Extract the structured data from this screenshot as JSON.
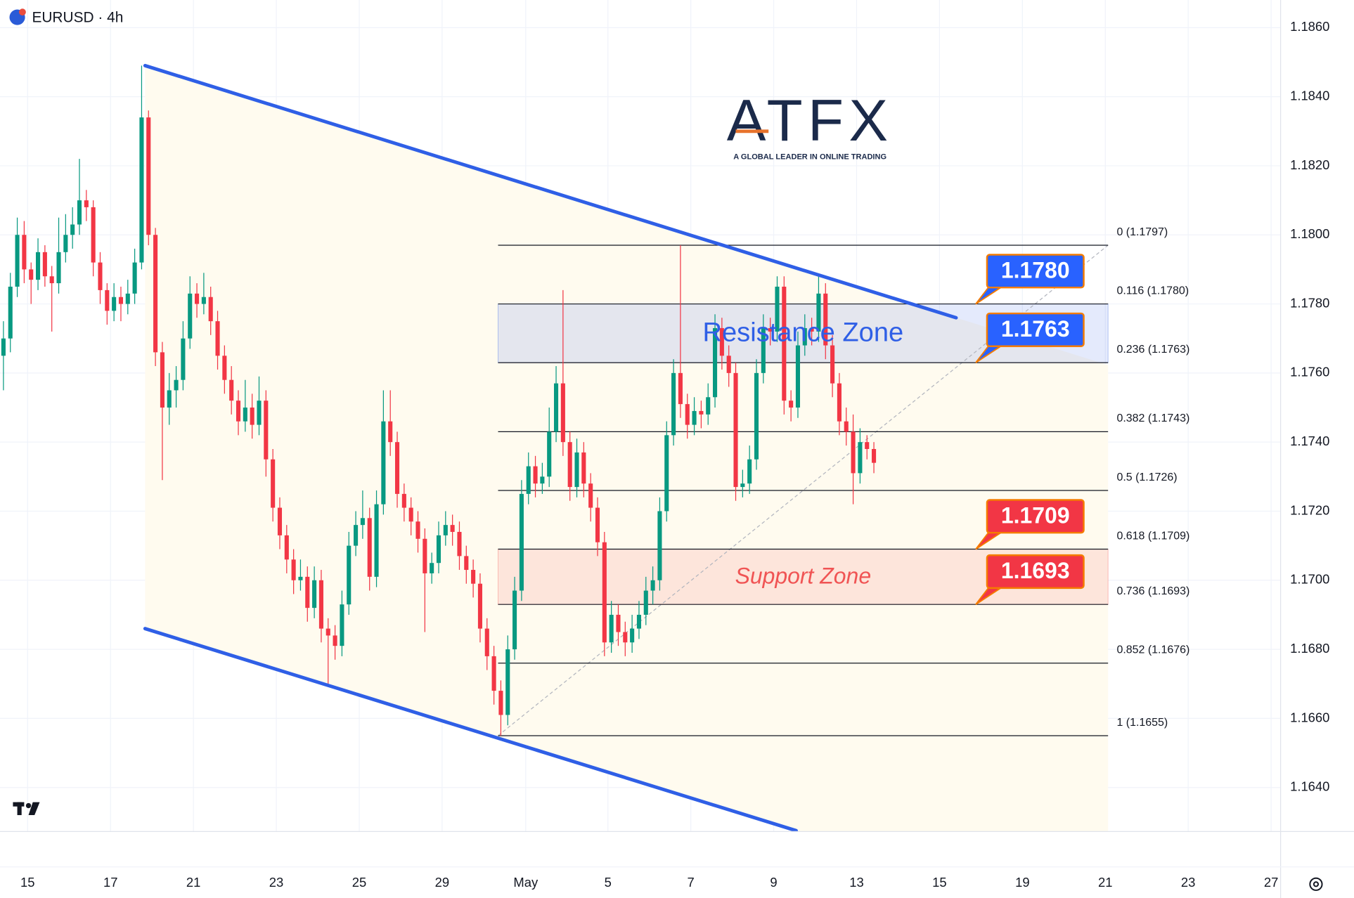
{
  "chart_data": {
    "type": "candlestick",
    "title": "EURUSD · 4h",
    "logo": {
      "name": "ATFX",
      "tagline": "A GLOBAL LEADER IN ONLINE TRADING"
    },
    "up_color": "#089981",
    "down_color": "#f23645",
    "grid": true,
    "xlim": [
      -0.5,
      184.875
    ],
    "ylim": [
      1.162725,
      1.1868
    ],
    "xticks": [
      {
        "value": 3.5,
        "label": "15"
      },
      {
        "value": 15.5,
        "label": "17"
      },
      {
        "value": 27.5,
        "label": "21"
      },
      {
        "value": 39.5,
        "label": "23"
      },
      {
        "value": 51.5,
        "label": "25"
      },
      {
        "value": 63.5,
        "label": "29"
      },
      {
        "value": 75.6,
        "label": "May"
      },
      {
        "value": 87.5,
        "label": "5"
      },
      {
        "value": 99.5,
        "label": "7"
      },
      {
        "value": 111.5,
        "label": "9"
      },
      {
        "value": 123.5,
        "label": "13"
      },
      {
        "value": 135.5,
        "label": "15"
      },
      {
        "value": 147.5,
        "label": "19"
      },
      {
        "value": 159.5,
        "label": "21"
      },
      {
        "value": 171.5,
        "label": "23"
      },
      {
        "value": 183.5,
        "label": "27"
      }
    ],
    "yticks": [
      {
        "value": 1.186,
        "label": "1.1860"
      },
      {
        "value": 1.184,
        "label": "1.1840"
      },
      {
        "value": 1.182,
        "label": "1.1820"
      },
      {
        "value": 1.18,
        "label": "1.1800"
      },
      {
        "value": 1.178,
        "label": "1.1780"
      },
      {
        "value": 1.176,
        "label": "1.1760"
      },
      {
        "value": 1.174,
        "label": "1.1740"
      },
      {
        "value": 1.172,
        "label": "1.1720"
      },
      {
        "value": 1.17,
        "label": "1.1700"
      },
      {
        "value": 1.168,
        "label": "1.1680"
      },
      {
        "value": 1.166,
        "label": "1.1660"
      },
      {
        "value": 1.164,
        "label": "1.1640"
      }
    ],
    "candles": [
      [
        1.1765,
        1.1775,
        1.1755,
        1.177
      ],
      [
        1.177,
        1.1789,
        1.1766,
        1.1785
      ],
      [
        1.1785,
        1.1805,
        1.1782,
        1.18
      ],
      [
        1.18,
        1.1804,
        1.1786,
        1.179
      ],
      [
        1.179,
        1.1792,
        1.178,
        1.1787
      ],
      [
        1.1787,
        1.1799,
        1.1784,
        1.1795
      ],
      [
        1.1795,
        1.1797,
        1.1785,
        1.1788
      ],
      [
        1.1788,
        1.1791,
        1.1772,
        1.1786
      ],
      [
        1.1786,
        1.1805,
        1.1783,
        1.1795
      ],
      [
        1.1795,
        1.1806,
        1.1792,
        1.18
      ],
      [
        1.18,
        1.1808,
        1.1796,
        1.1803
      ],
      [
        1.1803,
        1.1822,
        1.18,
        1.181
      ],
      [
        1.181,
        1.1813,
        1.1804,
        1.1808
      ],
      [
        1.1808,
        1.181,
        1.1788,
        1.1792
      ],
      [
        1.1792,
        1.1795,
        1.178,
        1.1784
      ],
      [
        1.1784,
        1.1786,
        1.1774,
        1.1778
      ],
      [
        1.1778,
        1.1786,
        1.1775,
        1.1782
      ],
      [
        1.1782,
        1.1785,
        1.1775,
        1.178
      ],
      [
        1.178,
        1.1787,
        1.1777,
        1.1783
      ],
      [
        1.1783,
        1.1796,
        1.178,
        1.1792
      ],
      [
        1.1792,
        1.1849,
        1.179,
        1.1834
      ],
      [
        1.1834,
        1.1836,
        1.1797,
        1.18
      ],
      [
        1.18,
        1.1802,
        1.1762,
        1.1766
      ],
      [
        1.1766,
        1.1769,
        1.1729,
        1.175
      ],
      [
        1.175,
        1.176,
        1.1745,
        1.1755
      ],
      [
        1.1755,
        1.1762,
        1.175,
        1.1758
      ],
      [
        1.1758,
        1.1775,
        1.1755,
        1.177
      ],
      [
        1.177,
        1.1788,
        1.1767,
        1.1783
      ],
      [
        1.1783,
        1.1786,
        1.1776,
        1.178
      ],
      [
        1.178,
        1.1789,
        1.1777,
        1.1782
      ],
      [
        1.1782,
        1.1785,
        1.1771,
        1.1775
      ],
      [
        1.1775,
        1.1778,
        1.1761,
        1.1765
      ],
      [
        1.1765,
        1.1768,
        1.1754,
        1.1758
      ],
      [
        1.1758,
        1.1762,
        1.1748,
        1.1752
      ],
      [
        1.1752,
        1.1755,
        1.1742,
        1.1746
      ],
      [
        1.1746,
        1.1758,
        1.1743,
        1.175
      ],
      [
        1.175,
        1.1754,
        1.1741,
        1.1745
      ],
      [
        1.1745,
        1.1759,
        1.1742,
        1.1752
      ],
      [
        1.1752,
        1.1755,
        1.173,
        1.1735
      ],
      [
        1.1735,
        1.1738,
        1.1717,
        1.1721
      ],
      [
        1.1721,
        1.1724,
        1.1709,
        1.1713
      ],
      [
        1.1713,
        1.1716,
        1.1702,
        1.1706
      ],
      [
        1.1706,
        1.1709,
        1.1696,
        1.17
      ],
      [
        1.17,
        1.1706,
        1.1697,
        1.1701
      ],
      [
        1.1701,
        1.1704,
        1.1688,
        1.1692
      ],
      [
        1.1692,
        1.1704,
        1.1689,
        1.17
      ],
      [
        1.17,
        1.1703,
        1.1682,
        1.1686
      ],
      [
        1.1686,
        1.1689,
        1.167,
        1.1684
      ],
      [
        1.1684,
        1.1687,
        1.1677,
        1.1681
      ],
      [
        1.1681,
        1.1697,
        1.1678,
        1.1693
      ],
      [
        1.1693,
        1.1714,
        1.169,
        1.171
      ],
      [
        1.171,
        1.172,
        1.1707,
        1.1716
      ],
      [
        1.1716,
        1.1726,
        1.1712,
        1.1718
      ],
      [
        1.1718,
        1.1721,
        1.1697,
        1.1701
      ],
      [
        1.1701,
        1.1726,
        1.1698,
        1.1722
      ],
      [
        1.1722,
        1.1755,
        1.1719,
        1.1746
      ],
      [
        1.1746,
        1.1755,
        1.1736,
        1.174
      ],
      [
        1.174,
        1.1743,
        1.1721,
        1.1725
      ],
      [
        1.1725,
        1.1728,
        1.1717,
        1.1721
      ],
      [
        1.1721,
        1.1724,
        1.1713,
        1.1717
      ],
      [
        1.1717,
        1.172,
        1.1708,
        1.1712
      ],
      [
        1.1712,
        1.1715,
        1.1685,
        1.1702
      ],
      [
        1.1702,
        1.1708,
        1.1699,
        1.1705
      ],
      [
        1.1705,
        1.1717,
        1.1702,
        1.1713
      ],
      [
        1.1713,
        1.172,
        1.171,
        1.1716
      ],
      [
        1.1716,
        1.1719,
        1.171,
        1.1714
      ],
      [
        1.1714,
        1.1717,
        1.1703,
        1.1707
      ],
      [
        1.1707,
        1.171,
        1.1699,
        1.1703
      ],
      [
        1.1703,
        1.1706,
        1.1695,
        1.1699
      ],
      [
        1.1699,
        1.1702,
        1.1682,
        1.1686
      ],
      [
        1.1686,
        1.1689,
        1.1674,
        1.1678
      ],
      [
        1.1678,
        1.1681,
        1.1664,
        1.1668
      ],
      [
        1.1668,
        1.1671,
        1.1655,
        1.1661
      ],
      [
        1.1661,
        1.1684,
        1.1658,
        1.168
      ],
      [
        1.168,
        1.1701,
        1.1677,
        1.1697
      ],
      [
        1.1697,
        1.1729,
        1.1694,
        1.1725
      ],
      [
        1.1725,
        1.1737,
        1.1722,
        1.1733
      ],
      [
        1.1733,
        1.1736,
        1.1724,
        1.1728
      ],
      [
        1.1728,
        1.1734,
        1.1725,
        1.173
      ],
      [
        1.173,
        1.175,
        1.1727,
        1.1743
      ],
      [
        1.1743,
        1.1762,
        1.174,
        1.1757
      ],
      [
        1.1757,
        1.1784,
        1.1736,
        1.174
      ],
      [
        1.174,
        1.1743,
        1.1723,
        1.1727
      ],
      [
        1.1727,
        1.1741,
        1.1724,
        1.1737
      ],
      [
        1.1737,
        1.174,
        1.1724,
        1.1728
      ],
      [
        1.1728,
        1.1731,
        1.1717,
        1.1721
      ],
      [
        1.1721,
        1.1724,
        1.1707,
        1.1711
      ],
      [
        1.1711,
        1.1714,
        1.1678,
        1.1682
      ],
      [
        1.1682,
        1.1694,
        1.1679,
        1.169
      ],
      [
        1.169,
        1.1693,
        1.1681,
        1.1685
      ],
      [
        1.1685,
        1.1688,
        1.1678,
        1.1682
      ],
      [
        1.1682,
        1.169,
        1.1679,
        1.1686
      ],
      [
        1.1686,
        1.1694,
        1.1683,
        1.169
      ],
      [
        1.169,
        1.1701,
        1.1687,
        1.1697
      ],
      [
        1.1697,
        1.1704,
        1.1693,
        1.17
      ],
      [
        1.17,
        1.1724,
        1.1697,
        1.172
      ],
      [
        1.172,
        1.1746,
        1.1717,
        1.1742
      ],
      [
        1.1742,
        1.1764,
        1.1739,
        1.176
      ],
      [
        1.176,
        1.1797,
        1.1747,
        1.1751
      ],
      [
        1.1751,
        1.1754,
        1.1741,
        1.1745
      ],
      [
        1.1745,
        1.1753,
        1.1742,
        1.1749
      ],
      [
        1.1749,
        1.1752,
        1.1744,
        1.1748
      ],
      [
        1.1748,
        1.1757,
        1.1745,
        1.1753
      ],
      [
        1.1753,
        1.1777,
        1.175,
        1.1773
      ],
      [
        1.1773,
        1.1776,
        1.1761,
        1.1765
      ],
      [
        1.1765,
        1.1768,
        1.1756,
        1.176
      ],
      [
        1.176,
        1.1763,
        1.1723,
        1.1727
      ],
      [
        1.1727,
        1.1732,
        1.1724,
        1.1728
      ],
      [
        1.1728,
        1.1739,
        1.1725,
        1.1735
      ],
      [
        1.1735,
        1.1764,
        1.1732,
        1.176
      ],
      [
        1.176,
        1.1777,
        1.1757,
        1.1773
      ],
      [
        1.1773,
        1.1776,
        1.1768,
        1.1772
      ],
      [
        1.1772,
        1.1788,
        1.1769,
        1.1785
      ],
      [
        1.1785,
        1.1788,
        1.1748,
        1.1752
      ],
      [
        1.1752,
        1.1755,
        1.1746,
        1.175
      ],
      [
        1.175,
        1.1772,
        1.1747,
        1.1768
      ],
      [
        1.1768,
        1.1777,
        1.1765,
        1.1773
      ],
      [
        1.1773,
        1.1776,
        1.1768,
        1.1772
      ],
      [
        1.1772,
        1.1788,
        1.1769,
        1.1783
      ],
      [
        1.1783,
        1.1786,
        1.1764,
        1.1768
      ],
      [
        1.1768,
        1.1771,
        1.1753,
        1.1757
      ],
      [
        1.1757,
        1.176,
        1.1742,
        1.1746
      ],
      [
        1.1746,
        1.175,
        1.1739,
        1.1743
      ],
      [
        1.1743,
        1.1748,
        1.1722,
        1.1731
      ],
      [
        1.1731,
        1.1744,
        1.1728,
        1.174
      ],
      [
        1.174,
        1.1742,
        1.1735,
        1.1738
      ],
      [
        1.1738,
        1.174,
        1.1731,
        1.1734
      ]
    ],
    "trendlines": [
      {
        "x": [
          20.5,
          137.9
        ],
        "y": [
          1.1849,
          1.1776
        ],
        "color": "#2f5fe6"
      },
      {
        "x": [
          20.5,
          114.75
        ],
        "y": [
          1.1686,
          1.16275
        ],
        "color": "#2f5fe6"
      }
    ],
    "channel_color": "#fffbef",
    "fib": {
      "x": [
        71.6,
        159.9
      ],
      "levels": [
        {
          "value": 1.1797,
          "label": "0 (1.1797)"
        },
        {
          "value": 1.178,
          "label": "0.116 (1.1780)"
        },
        {
          "value": 1.1763,
          "label": "0.236 (1.1763)"
        },
        {
          "value": 1.1743,
          "label": "0.382 (1.1743)"
        },
        {
          "value": 1.1726,
          "label": "0.5 (1.1726)"
        },
        {
          "value": 1.1709,
          "label": "0.618 (1.1709)"
        },
        {
          "value": 1.1693,
          "label": "0.736 (1.1693)"
        },
        {
          "value": 1.1676,
          "label": "0.852 (1.1676)"
        },
        {
          "value": 1.1655,
          "label": "1 (1.1655)"
        }
      ]
    },
    "zones": [
      {
        "label": "Resistance Zone",
        "range": [
          1.1763,
          1.178
        ],
        "color": "#2f5fe6"
      },
      {
        "label": "Support Zone",
        "range": [
          1.1693,
          1.1709
        ],
        "color": "#f05454"
      }
    ],
    "callouts": [
      {
        "value": 1.178,
        "label": "1.1780",
        "color": "#2962ff"
      },
      {
        "value": 1.1763,
        "label": "1.1763",
        "color": "#2962ff"
      },
      {
        "value": 1.1709,
        "label": "1.1709",
        "color": "#f23645"
      },
      {
        "value": 1.1693,
        "label": "1.1693",
        "color": "#f23645"
      }
    ]
  }
}
